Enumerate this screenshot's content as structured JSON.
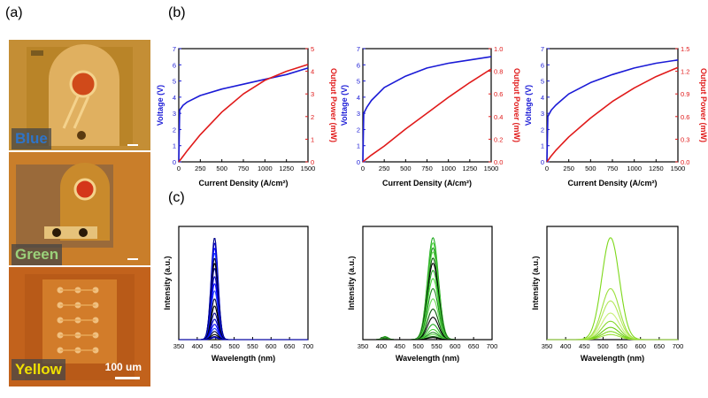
{
  "panel_labels": {
    "a": "(a)",
    "b": "(b)",
    "c": "(c)"
  },
  "micrographs": [
    {
      "label": "Blue",
      "label_color": "#2e74c8"
    },
    {
      "label": "Green",
      "label_color": "#9bd17a"
    },
    {
      "label": "Yellow",
      "label_color": "#f0e000",
      "scale_bar": "100 um"
    }
  ],
  "colors": {
    "voltage": "#1a1ad6",
    "power": "#e01a1a"
  },
  "chart_data": [
    {
      "type": "line",
      "panel": "b",
      "color_group": "Blue",
      "xlabel": "Current Density (A/cm²)",
      "ylabel_left": "Voltage (V)",
      "ylabel_right": "Output Power (mW)",
      "xlim": [
        0,
        1500
      ],
      "x_ticks": [
        "0",
        "250",
        "500",
        "750",
        "1000",
        "1250",
        "1500"
      ],
      "ylim_left": [
        0,
        7
      ],
      "y_ticks_left": [
        "0",
        "1",
        "2",
        "3",
        "4",
        "5",
        "6",
        "7"
      ],
      "ylim_right": [
        0,
        5
      ],
      "y_ticks_right": [
        "0",
        "1",
        "2",
        "3",
        "4",
        "5"
      ],
      "series": [
        {
          "axis": "left",
          "x": [
            0,
            10,
            50,
            100,
            250,
            500,
            750,
            1000,
            1250,
            1500
          ],
          "y": [
            0,
            3.2,
            3.5,
            3.7,
            4.1,
            4.5,
            4.8,
            5.1,
            5.4,
            5.8
          ]
        },
        {
          "axis": "right",
          "x": [
            0,
            50,
            100,
            250,
            500,
            750,
            1000,
            1250,
            1500
          ],
          "y": [
            0,
            0.25,
            0.5,
            1.2,
            2.2,
            3.0,
            3.6,
            4.0,
            4.3
          ]
        }
      ]
    },
    {
      "type": "line",
      "panel": "b",
      "color_group": "Green",
      "xlabel": "Current Density (A/cm²)",
      "ylabel_left": "Voltage (V)",
      "ylabel_right": "Output Power (mW)",
      "xlim": [
        0,
        1500
      ],
      "x_ticks": [
        "0",
        "250",
        "500",
        "750",
        "1000",
        "1250",
        "1500"
      ],
      "ylim_left": [
        0,
        7
      ],
      "y_ticks_left": [
        "0",
        "1",
        "2",
        "3",
        "4",
        "5",
        "6",
        "7"
      ],
      "ylim_right": [
        0,
        1.0
      ],
      "y_ticks_right": [
        "0.0",
        "0.2",
        "0.4",
        "0.6",
        "0.8",
        "1.0"
      ],
      "series": [
        {
          "axis": "left",
          "x": [
            0,
            10,
            50,
            100,
            250,
            500,
            750,
            1000,
            1250,
            1500
          ],
          "y": [
            0,
            3.0,
            3.4,
            3.8,
            4.6,
            5.3,
            5.8,
            6.1,
            6.3,
            6.5
          ]
        },
        {
          "axis": "right",
          "x": [
            0,
            100,
            250,
            500,
            750,
            1000,
            1250,
            1500
          ],
          "y": [
            0,
            0.06,
            0.14,
            0.29,
            0.43,
            0.57,
            0.7,
            0.82
          ]
        }
      ]
    },
    {
      "type": "line",
      "panel": "b",
      "color_group": "Yellow",
      "xlabel": "Current Density (A/cm²)",
      "ylabel_left": "Voltage (V)",
      "ylabel_right": "Output Power (mW)",
      "xlim": [
        0,
        1500
      ],
      "x_ticks": [
        "0",
        "250",
        "500",
        "750",
        "1000",
        "1250",
        "1500"
      ],
      "ylim_left": [
        0,
        7
      ],
      "y_ticks_left": [
        "0",
        "1",
        "2",
        "3",
        "4",
        "5",
        "6",
        "7"
      ],
      "ylim_right": [
        0,
        1.5
      ],
      "y_ticks_right": [
        "0.0",
        "0.3",
        "0.6",
        "0.9",
        "1.2",
        "1.5"
      ],
      "series": [
        {
          "axis": "left",
          "x": [
            0,
            10,
            50,
            100,
            250,
            500,
            750,
            1000,
            1250,
            1500
          ],
          "y": [
            0,
            2.8,
            3.2,
            3.5,
            4.2,
            4.9,
            5.4,
            5.8,
            6.1,
            6.3
          ]
        },
        {
          "axis": "right",
          "x": [
            0,
            50,
            100,
            250,
            500,
            750,
            1000,
            1250,
            1500
          ],
          "y": [
            0,
            0.08,
            0.15,
            0.33,
            0.58,
            0.8,
            0.98,
            1.13,
            1.25
          ]
        }
      ]
    },
    {
      "type": "line",
      "panel": "c",
      "color_group": "Blue",
      "xlabel": "Wavelength (nm)",
      "ylabel": "Intensity (a.u.)",
      "xlim": [
        350,
        700
      ],
      "x_ticks": [
        "350",
        "400",
        "450",
        "500",
        "550",
        "600",
        "650",
        "700"
      ],
      "peak_nm": 447,
      "fwhm_nm": 22,
      "secondary_peak_nm": null,
      "curve_colors": [
        "#00008b",
        "#0000c0",
        "#0000ff",
        "#1e3cff",
        "#0a0a3a",
        "#000000"
      ],
      "relative_peaks": [
        1.0,
        0.95,
        0.9,
        0.85,
        0.8,
        0.75,
        0.7,
        0.62,
        0.55,
        0.48,
        0.4,
        0.33,
        0.26,
        0.2,
        0.15,
        0.11,
        0.08,
        0.05,
        0.03,
        0.02
      ]
    },
    {
      "type": "line",
      "panel": "c",
      "color_group": "Green",
      "xlabel": "Wavelength (nm)",
      "ylabel": "Intensity (a.u.)",
      "xlim": [
        350,
        700
      ],
      "x_ticks": [
        "350",
        "400",
        "450",
        "500",
        "550",
        "600",
        "650",
        "700"
      ],
      "peak_nm": 540,
      "fwhm_nm": 35,
      "secondary_peak_nm": 410,
      "curve_colors": [
        "#22aa22",
        "#4cd43c",
        "#1c8a1c",
        "#66dd55",
        "#0a5a0a",
        "#000000"
      ],
      "relative_peaks": [
        1.0,
        0.95,
        0.9,
        0.86,
        0.8,
        0.75,
        0.68,
        0.6,
        0.5,
        0.4,
        0.3,
        0.22,
        0.15,
        0.1,
        0.07,
        0.05,
        0.03,
        0.02
      ]
    },
    {
      "type": "line",
      "panel": "c",
      "color_group": "Yellow",
      "xlabel": "Wavelength (nm)",
      "ylabel": "Intensity (a.u.)",
      "xlim": [
        350,
        700
      ],
      "x_ticks": [
        "350",
        "400",
        "450",
        "500",
        "550",
        "600",
        "650",
        "700"
      ],
      "peak_nm": 520,
      "fwhm_nm": 55,
      "secondary_peak_nm": null,
      "curve_colors": [
        "#7dd81a",
        "#9be03c",
        "#b4e85a",
        "#c8ef7a",
        "#86d82c",
        "#6ccc10"
      ],
      "relative_peaks": [
        1.0,
        0.5,
        0.38,
        0.26,
        0.18,
        0.12,
        0.08,
        0.05
      ]
    }
  ]
}
